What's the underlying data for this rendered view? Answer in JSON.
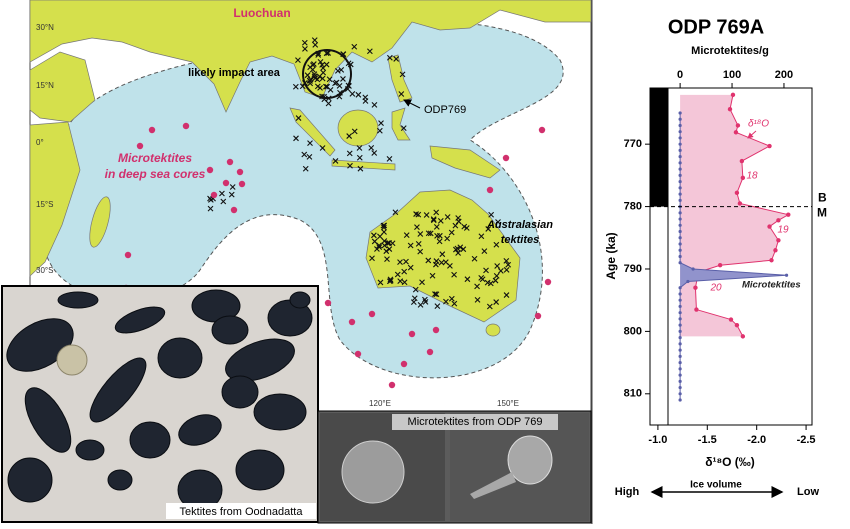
{
  "map": {
    "labels": {
      "luochuan": "Luochuan",
      "impact": "likely impact area",
      "odp": "ODP769",
      "deep_sea": [
        "Microtektites",
        "in deep sea cores"
      ],
      "australasian": [
        "Australasian",
        "tektites"
      ]
    },
    "latitudes": [
      "30°N",
      "15°N",
      "0°",
      "15°S",
      "30°S"
    ],
    "longitudes": [
      "120°E",
      "150°E"
    ]
  },
  "photos": {
    "tektites": "Tektites from Oodnadatta",
    "microtektites": "Microtektites from ODP 769"
  },
  "chart_data": {
    "type": "line",
    "title": "ODP 769A",
    "ylabel": "Age (ka)",
    "xlabel": "δ¹⁸O (‰)",
    "x2label": "Microtektites/g",
    "ylim": [
      761,
      815
    ],
    "yticks": [
      770,
      780,
      790,
      800,
      810
    ],
    "xlim": [
      -0.92,
      -2.56
    ],
    "xticks": [
      {
        "value": -1,
        "label": "-1.0"
      },
      -1.5,
      {
        "value": -2,
        "label": "-2.0"
      },
      -2.5
    ],
    "x2lim": [
      -58,
      254
    ],
    "x2ticks": [
      0,
      100,
      200
    ],
    "series": [
      {
        "name": "δ¹⁸O",
        "color": "#e0336e",
        "fill": "#f4c6d8",
        "ages": [
          762.1,
          764.4,
          767.0,
          768.1,
          770.3,
          772.7,
          775.4,
          777.8,
          779.5,
          781.3,
          782.2,
          783.2,
          785.4,
          787.0,
          788.6,
          789.4,
          790.5,
          793.0,
          796.5,
          798.1,
          799.0,
          800.8
        ],
        "values": [
          -1.76,
          -1.73,
          -1.81,
          -1.79,
          -2.13,
          -1.85,
          -1.86,
          -1.8,
          -1.83,
          -2.32,
          -2.22,
          -2.13,
          -2.22,
          -2.19,
          -2.15,
          -1.63,
          -1.41,
          -1.38,
          -1.39,
          -1.74,
          -1.8,
          -1.86
        ]
      },
      {
        "name": "Microtektites",
        "color": "#5a5fa8",
        "fill": "#9193cc",
        "axis": "x2",
        "ages": [
          765,
          766,
          767,
          768,
          769,
          770,
          771,
          772,
          773,
          774,
          775,
          776,
          777,
          778,
          779,
          780,
          781,
          782,
          783,
          784,
          785,
          786,
          787,
          788,
          789,
          790,
          791,
          792,
          793,
          794,
          795,
          796,
          797,
          798,
          799,
          800,
          801,
          802,
          803,
          804,
          805,
          806,
          807,
          808,
          809,
          810,
          811
        ],
        "values": [
          0,
          0,
          0,
          0,
          0,
          0,
          0,
          0,
          0,
          0,
          0,
          0,
          0,
          0,
          0,
          0,
          0,
          0,
          0,
          0,
          0,
          0,
          0,
          0,
          0,
          25,
          205,
          15,
          0,
          0,
          0,
          0,
          0,
          0,
          0,
          0,
          0,
          0,
          0,
          0,
          0,
          0,
          0,
          0,
          0,
          0,
          0
        ]
      }
    ],
    "stages": [
      "18",
      "19",
      "20"
    ],
    "boundary": {
      "age": 780,
      "above": "B",
      "below": "M"
    },
    "ice_volume": {
      "label": "Ice volume",
      "left": "High",
      "right": "Low"
    }
  }
}
